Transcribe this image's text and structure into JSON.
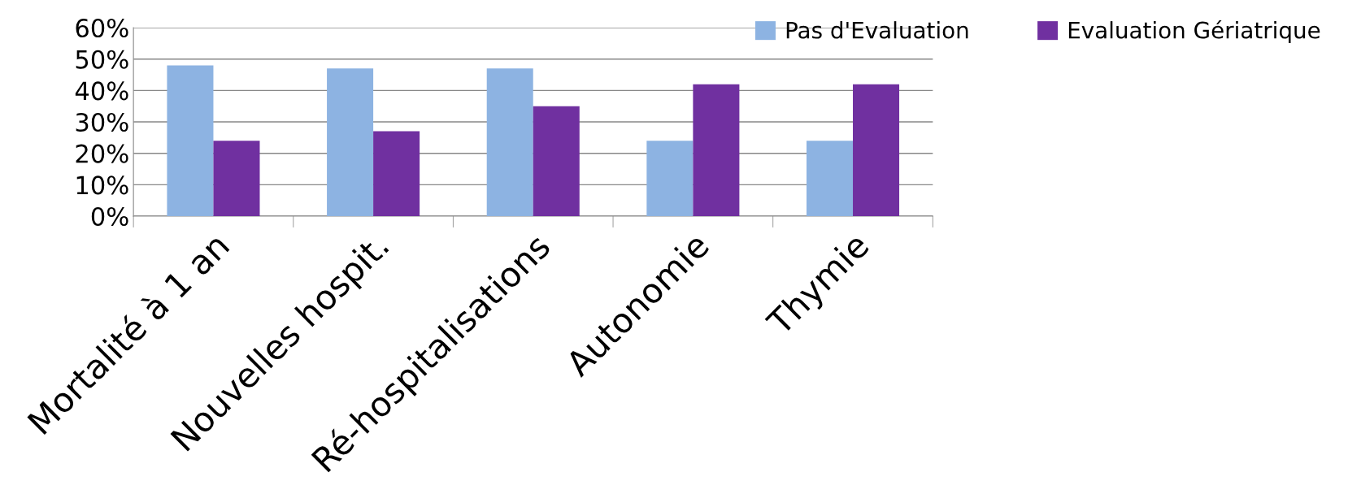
{
  "chart_data": {
    "type": "bar",
    "categories": [
      "Mortalité à 1 an",
      "Nouvelles hospit.",
      "Ré-hospitalisations",
      "Autonomie",
      "Thymie"
    ],
    "series": [
      {
        "name": "Pas d'Evaluation",
        "color": "#8db3e2",
        "values": [
          48,
          47,
          47,
          24,
          24
        ]
      },
      {
        "name": "Evaluation Gériatrique",
        "color": "#7030a0",
        "values": [
          24,
          27,
          35,
          42,
          42
        ]
      }
    ],
    "ylim": [
      0,
      60
    ],
    "yticks": [
      {
        "value": 0,
        "label": "0%"
      },
      {
        "value": 10,
        "label": "10%"
      },
      {
        "value": 20,
        "label": "20%"
      },
      {
        "value": 30,
        "label": "30%"
      },
      {
        "value": 40,
        "label": "40%"
      },
      {
        "value": 50,
        "label": "50%"
      },
      {
        "value": 60,
        "label": "60%"
      }
    ],
    "grid": "y",
    "legend": "top right"
  }
}
